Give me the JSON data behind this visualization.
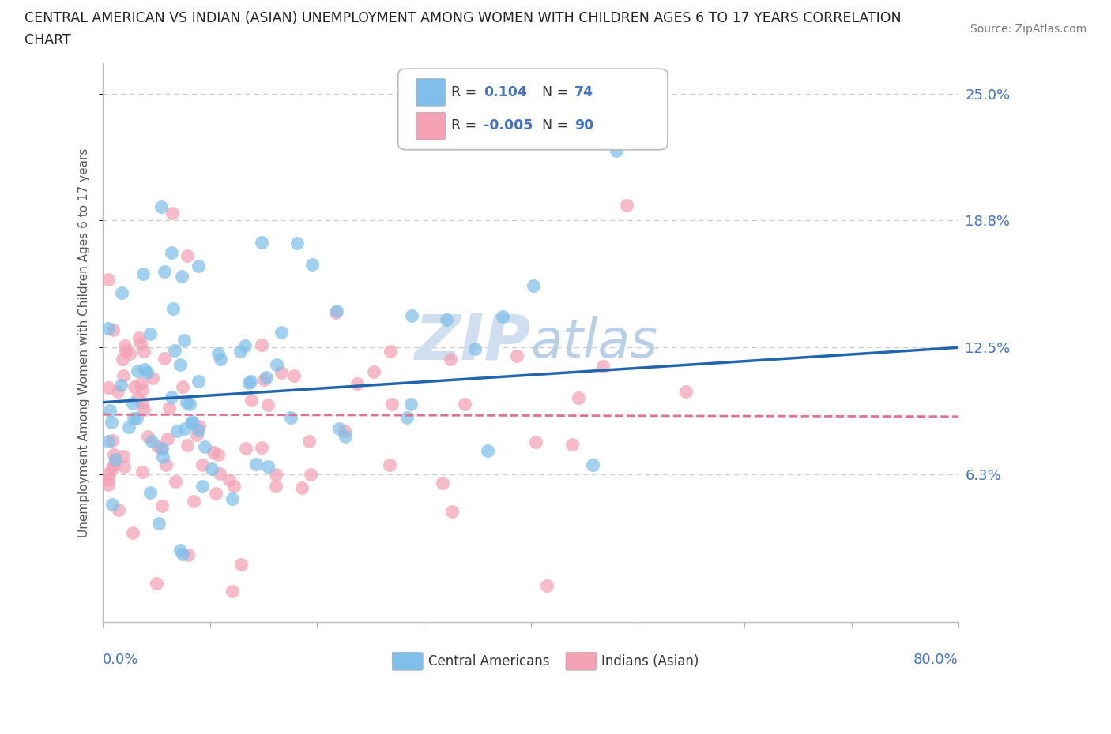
{
  "title_line1": "CENTRAL AMERICAN VS INDIAN (ASIAN) UNEMPLOYMENT AMONG WOMEN WITH CHILDREN AGES 6 TO 17 YEARS CORRELATION",
  "title_line2": "CHART",
  "source": "Source: ZipAtlas.com",
  "ylabel": "Unemployment Among Women with Children Ages 6 to 17 years",
  "xlim": [
    0.0,
    0.8
  ],
  "ylim": [
    -0.01,
    0.265
  ],
  "ytick_vals": [
    0.0625,
    0.125,
    0.1875,
    0.25
  ],
  "ytick_labels": [
    "6.3%",
    "12.5%",
    "18.8%",
    "25.0%"
  ],
  "ca_color": "#7fbfea",
  "ca_line_color": "#2166ac",
  "in_color": "#f4a0b5",
  "in_line_color": "#e07090",
  "grid_color": "#cccccc",
  "background_color": "#ffffff",
  "title_color": "#222222",
  "axis_tick_color": "#4472c4",
  "watermark_color": "#d0dff0",
  "ca_R": 0.104,
  "ca_N": 74,
  "in_R": -0.005,
  "in_N": 90,
  "ca_line_x0": 0.0,
  "ca_line_y0": 0.098,
  "ca_line_x1": 0.8,
  "ca_line_y1": 0.125,
  "in_line_x0": 0.0,
  "in_line_y0": 0.092,
  "in_line_x1": 0.8,
  "in_line_y1": 0.091
}
